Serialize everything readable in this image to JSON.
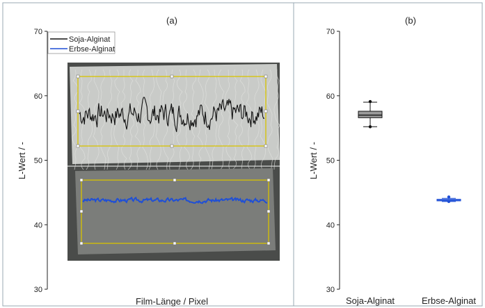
{
  "chart_data": [
    {
      "panel_label": "(a)",
      "type": "line",
      "xlabel": "Film-Länge / Pixel",
      "ylabel": "L-Wert / -",
      "ylim": [
        30,
        70
      ],
      "yticks": [
        30,
        40,
        50,
        60,
        70
      ],
      "legend": {
        "placement": "top-left",
        "entries": [
          "Soja-Alginat",
          "Erbse-Alginat"
        ]
      },
      "grid": false,
      "series": [
        {
          "name": "Soja-Alginat",
          "color": "#111111",
          "mean": 57.2,
          "amplitude": 1.6,
          "seed": 7,
          "points": 220
        },
        {
          "name": "Erbse-Alginat",
          "color": "#1f4fd6",
          "mean": 43.8,
          "amplitude": 0.25,
          "seed": 3,
          "points": 220
        }
      ],
      "background": "photographic inset of two film samples with yellow selection rectangles"
    },
    {
      "panel_label": "(b)",
      "type": "box",
      "ylabel": "L-Wert / -",
      "ylim": [
        30,
        70
      ],
      "yticks": [
        30,
        40,
        50,
        60,
        70
      ],
      "categories": [
        "Soja-Alginat",
        "Erbse-Alginat"
      ],
      "grid": false,
      "boxes": [
        {
          "name": "Soja-Alginat",
          "color": "#111111",
          "whisker_low": 55.2,
          "q1": 56.6,
          "median": 57.0,
          "q3": 57.6,
          "whisker_high": 59.0,
          "min": 55.2,
          "max": 59.1
        },
        {
          "name": "Erbse-Alginat",
          "color": "#1f4fd6",
          "whisker_low": 43.6,
          "q1": 43.7,
          "median": 43.8,
          "q3": 43.95,
          "whisker_high": 44.1,
          "min": 43.6,
          "max": 44.3
        }
      ]
    }
  ]
}
